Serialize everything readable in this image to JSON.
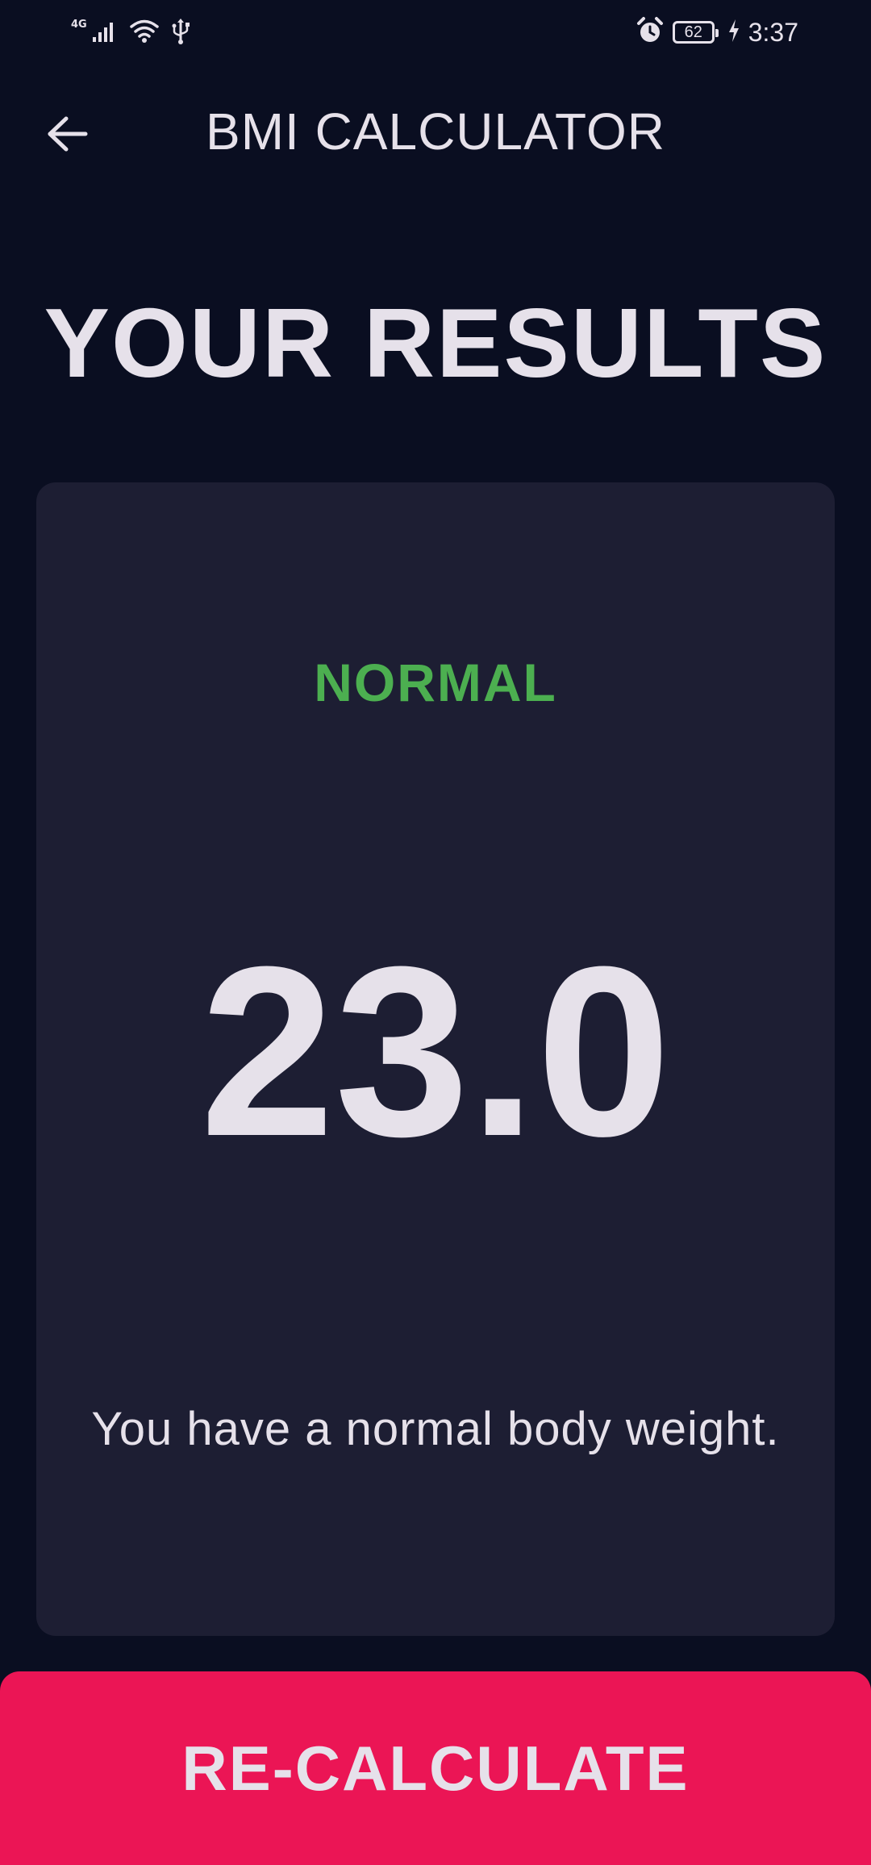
{
  "status_bar": {
    "network_type": "4G",
    "battery_level": "62",
    "time": "3:37",
    "icons": [
      "signal-icon",
      "wifi-icon",
      "usb-icon",
      "alarm-icon",
      "battery-icon",
      "charging-icon"
    ]
  },
  "app_bar": {
    "title": "BMI CALCULATOR",
    "back_icon": "arrow-back-icon"
  },
  "heading": "YOUR RESULTS",
  "result": {
    "category": "NORMAL",
    "bmi": "23.0",
    "interpretation": "You have a normal body weight."
  },
  "actions": {
    "recalculate_label": "RE-CALCULATE"
  },
  "colors": {
    "background": "#0a0e21",
    "card": "#1d1e33",
    "category": "#4caf50",
    "accent": "#eb1555",
    "text": "#e6e1ea"
  }
}
